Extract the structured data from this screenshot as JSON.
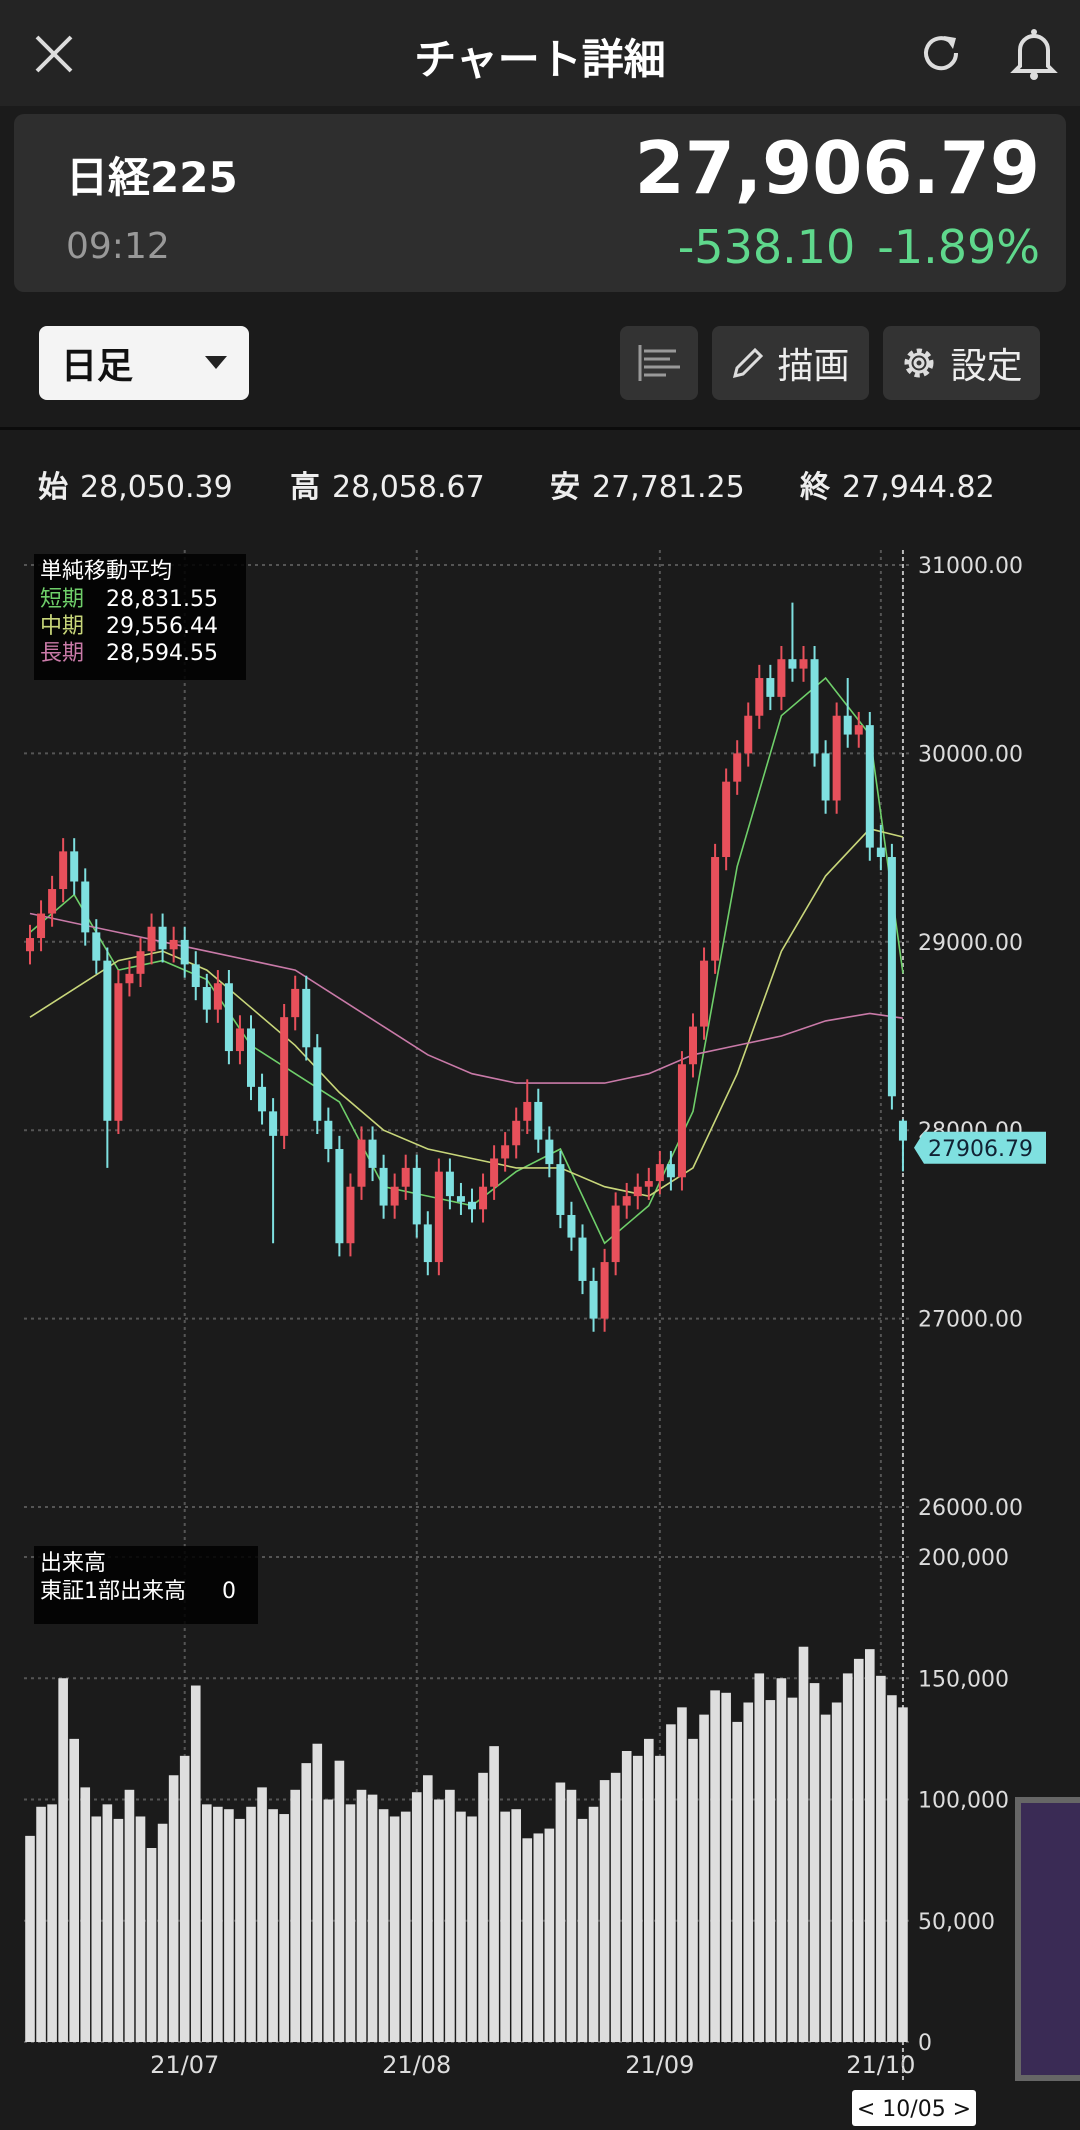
{
  "header": {
    "title": "チャート詳細"
  },
  "quote": {
    "name": "日経225",
    "time": "09:12",
    "price": "27,906.79",
    "change": "-538.10",
    "change_pct": "-1.89%"
  },
  "controls": {
    "period": "日足",
    "draw": "描画",
    "settings": "設定"
  },
  "ohlc": [
    {
      "label": "始",
      "value": "28,050.39"
    },
    {
      "label": "高",
      "value": "28,058.67"
    },
    {
      "label": "安",
      "value": "27,781.25"
    },
    {
      "label": "終",
      "value": "27,944.82"
    }
  ],
  "chart_data": [
    {
      "type": "candlestick",
      "categories": [
        null,
        null,
        null,
        null,
        null,
        null,
        null,
        null,
        null,
        null,
        null,
        null,
        null,
        null,
        "21/07",
        null,
        null,
        null,
        null,
        null,
        null,
        null,
        null,
        null,
        null,
        null,
        null,
        null,
        null,
        null,
        null,
        null,
        null,
        null,
        null,
        "21/08",
        null,
        null,
        null,
        null,
        null,
        null,
        null,
        null,
        null,
        null,
        null,
        null,
        null,
        null,
        null,
        null,
        null,
        null,
        null,
        null,
        null,
        "21/09",
        null,
        null,
        null,
        null,
        null,
        null,
        null,
        null,
        null,
        null,
        null,
        null,
        null,
        null,
        null,
        null,
        null,
        null,
        null,
        "21/10",
        null,
        null
      ],
      "open": [
        28950,
        29020,
        29150,
        29280,
        29480,
        29320,
        29050,
        28900,
        28050,
        28780,
        28830,
        28950,
        29080,
        28960,
        29010,
        28880,
        28760,
        28640,
        28780,
        28420,
        28540,
        28230,
        28100,
        27970,
        28600,
        28750,
        28440,
        28050,
        27900,
        27400,
        27700,
        27950,
        27800,
        27600,
        27700,
        27800,
        27500,
        27300,
        27780,
        27650,
        27620,
        27580,
        27700,
        27850,
        27920,
        28050,
        28150,
        27950,
        27820,
        27550,
        27430,
        27200,
        27000,
        27300,
        27600,
        27650,
        27700,
        27730,
        27820,
        27750,
        28350,
        28550,
        28900,
        29450,
        29850,
        30000,
        30200,
        30400,
        30300,
        30500,
        30450,
        30500,
        30000,
        29750,
        30200,
        30100,
        30150,
        29500,
        29450,
        28050.39
      ],
      "high": [
        29090,
        29220,
        29350,
        29550,
        29550,
        29390,
        29120,
        28970,
        28850,
        28900,
        29020,
        29150,
        29150,
        29080,
        29080,
        28950,
        28830,
        28850,
        28850,
        28610,
        28610,
        28300,
        28170,
        28670,
        28820,
        28820,
        28510,
        28120,
        27970,
        27770,
        28020,
        28020,
        27870,
        27770,
        27870,
        27870,
        27570,
        27850,
        27850,
        27720,
        27690,
        27770,
        27920,
        27990,
        28120,
        28270,
        28220,
        28020,
        27890,
        27620,
        27500,
        27270,
        27370,
        27670,
        27720,
        27770,
        27800,
        27890,
        27890,
        28420,
        28620,
        28970,
        29520,
        29920,
        30070,
        30270,
        30470,
        30470,
        30570,
        30800,
        30570,
        30570,
        30070,
        30270,
        30400,
        30220,
        30220,
        29620,
        29520,
        28058.67
      ],
      "low": [
        28880,
        28950,
        29080,
        29210,
        29250,
        28980,
        28830,
        27800,
        27980,
        28710,
        28760,
        28880,
        28890,
        28890,
        28810,
        28690,
        28570,
        28570,
        28350,
        28350,
        28160,
        28030,
        27400,
        27900,
        28530,
        28370,
        27980,
        27830,
        27330,
        27330,
        27630,
        27730,
        27530,
        27530,
        27630,
        27430,
        27230,
        27230,
        27580,
        27550,
        27510,
        27510,
        27630,
        27780,
        27850,
        27980,
        27880,
        27750,
        27480,
        27360,
        27130,
        26930,
        26930,
        27230,
        27530,
        27580,
        27630,
        27660,
        27680,
        27680,
        28280,
        28480,
        28830,
        29380,
        29780,
        29930,
        30130,
        30230,
        30230,
        30380,
        30380,
        29930,
        29680,
        29680,
        30030,
        30030,
        29430,
        29380,
        28110,
        27781.25
      ],
      "close": [
        29020,
        29150,
        29280,
        29480,
        29320,
        29050,
        28900,
        28050,
        28780,
        28830,
        28950,
        29080,
        28960,
        29010,
        28880,
        28760,
        28640,
        28780,
        28420,
        28540,
        28230,
        28100,
        27970,
        28600,
        28750,
        28440,
        28050,
        27900,
        27400,
        27700,
        27950,
        27800,
        27600,
        27700,
        27800,
        27500,
        27300,
        27780,
        27650,
        27620,
        27580,
        27700,
        27850,
        27920,
        28050,
        28150,
        27950,
        27820,
        27550,
        27430,
        27200,
        27000,
        27300,
        27600,
        27650,
        27700,
        27730,
        27820,
        27750,
        28350,
        28550,
        28900,
        29450,
        29850,
        30000,
        30200,
        30400,
        30300,
        30500,
        30450,
        30500,
        30000,
        29750,
        30200,
        30100,
        30150,
        29500,
        29450,
        28180,
        27944.82
      ],
      "up_color": "#e8505b",
      "down_color": "#7fe0e0",
      "ylim": [
        26000,
        31000
      ],
      "yticks": [
        {
          "value": 26000,
          "label": "26000.00"
        },
        {
          "value": 27000,
          "label": "27000.00"
        },
        {
          "value": 28000,
          "label": "28000.00"
        },
        {
          "value": 29000,
          "label": "29000.00"
        },
        {
          "value": 30000,
          "label": "30000.00"
        },
        {
          "value": 31000,
          "label": "31000.00"
        }
      ],
      "grid": true,
      "price_tag": 27906.79,
      "cursor_label": "< 10/05 >",
      "lines": {
        "title": "単純移動平均",
        "series": [
          {
            "name": "短期",
            "color": "#6fcf6a",
            "value_label": "28,831.55",
            "x": [
              0,
              4,
              8,
              12,
              16,
              20,
              24,
              28,
              32,
              36,
              40,
              44,
              48,
              52,
              56,
              60,
              64,
              68,
              72,
              76,
              79
            ],
            "values": [
              29050,
              29250,
              28850,
              28900,
              28800,
              28450,
              28300,
              28150,
              27700,
              27650,
              27600,
              27780,
              27900,
              27400,
              27600,
              28100,
              29400,
              30200,
              30400,
              30100,
              28831.55
            ]
          },
          {
            "name": "中期",
            "color": "#c8d67a",
            "value_label": "29,556.44",
            "x": [
              0,
              4,
              8,
              12,
              16,
              20,
              24,
              28,
              32,
              36,
              40,
              44,
              48,
              52,
              56,
              60,
              64,
              68,
              72,
              76,
              79
            ],
            "values": [
              28600,
              28750,
              28900,
              28950,
              28850,
              28650,
              28450,
              28200,
              28000,
              27900,
              27850,
              27800,
              27800,
              27700,
              27650,
              27800,
              28300,
              28950,
              29350,
              29600,
              29556.44
            ]
          },
          {
            "name": "長期",
            "color": "#c97aa8",
            "value_label": "28,594.55",
            "x": [
              0,
              4,
              8,
              12,
              16,
              20,
              24,
              28,
              32,
              36,
              40,
              44,
              48,
              52,
              56,
              60,
              64,
              68,
              72,
              76,
              79
            ],
            "values": [
              29150,
              29100,
              29050,
              29000,
              28950,
              28900,
              28850,
              28700,
              28550,
              28400,
              28300,
              28250,
              28250,
              28250,
              28300,
              28400,
              28450,
              28500,
              28580,
              28620,
              28594.55
            ]
          }
        ]
      }
    },
    {
      "type": "bar",
      "title": "出来高",
      "series_name": "東証1部出来高",
      "series_value": "0",
      "color": "#dedede",
      "values": [
        85000,
        97000,
        98000,
        150000,
        125000,
        105000,
        93000,
        98000,
        92000,
        104000,
        93000,
        80000,
        90000,
        110000,
        118000,
        147000,
        98000,
        97000,
        96000,
        92000,
        97000,
        105000,
        96000,
        94000,
        104000,
        115000,
        123000,
        100000,
        116000,
        98000,
        104000,
        102000,
        96000,
        93000,
        95000,
        103000,
        110000,
        100000,
        104000,
        95000,
        93000,
        111000,
        122000,
        95000,
        96000,
        84000,
        86000,
        88000,
        107000,
        104000,
        92000,
        97000,
        108000,
        111000,
        120000,
        118000,
        125000,
        118000,
        131000,
        138000,
        125000,
        135000,
        145000,
        144000,
        132000,
        140000,
        152000,
        141000,
        150000,
        142000,
        163000,
        148000,
        135000,
        140000,
        152000,
        158000,
        162000,
        151000,
        143000,
        138000
      ],
      "ylim": [
        0,
        200000
      ],
      "yticks": [
        0,
        {
          "value": 50000,
          "label": "50,000"
        },
        {
          "value": 100000,
          "label": "100,000"
        },
        {
          "value": 150000,
          "label": "150,000"
        },
        {
          "value": 200000,
          "label": "200,000"
        }
      ],
      "grid": true
    }
  ]
}
